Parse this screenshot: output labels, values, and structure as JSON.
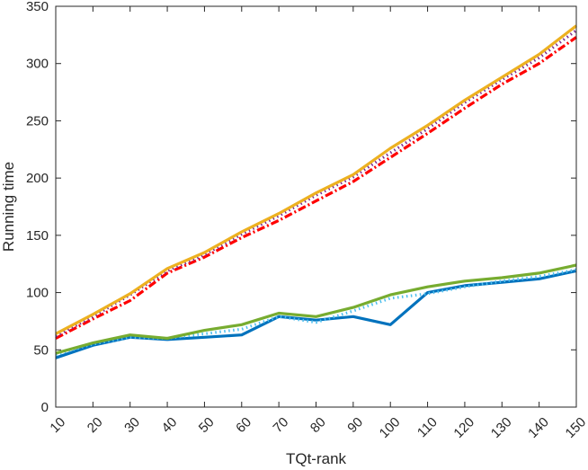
{
  "chart_data": {
    "type": "line",
    "title": "",
    "xlabel": "TQt-rank",
    "ylabel": "Running time",
    "xlim": [
      10,
      150
    ],
    "ylim": [
      0,
      350
    ],
    "x_ticks": [
      10,
      20,
      30,
      40,
      50,
      60,
      70,
      80,
      90,
      100,
      110,
      120,
      130,
      140,
      150
    ],
    "y_ticks": [
      0,
      50,
      100,
      150,
      200,
      250,
      300,
      350
    ],
    "x": [
      10,
      20,
      30,
      40,
      50,
      60,
      70,
      80,
      90,
      100,
      110,
      120,
      130,
      140,
      150
    ],
    "grid": false,
    "legend": "none",
    "series": [
      {
        "color": "#0072BD",
        "style": "solid",
        "values": [
          43,
          54,
          61,
          59,
          61,
          63,
          79,
          76,
          79,
          72,
          100,
          106,
          109,
          112,
          119
        ]
      },
      {
        "color": "#4DBEEE",
        "style": "dotted",
        "values": [
          46,
          55,
          61,
          60,
          64,
          68,
          79,
          74,
          84,
          95,
          99,
          105,
          110,
          114,
          120
        ]
      },
      {
        "color": "#77AC30",
        "style": "solid",
        "values": [
          47,
          56,
          63,
          60,
          67,
          72,
          82,
          79,
          87,
          98,
          105,
          110,
          113,
          117,
          124
        ]
      },
      {
        "color": "#FF0000",
        "style": "dashdot",
        "values": [
          60,
          77,
          93,
          117,
          131,
          148,
          163,
          180,
          197,
          218,
          239,
          261,
          282,
          300,
          323
        ]
      },
      {
        "color": "#7E2F8E",
        "style": "dotted",
        "values": [
          62,
          79,
          98,
          119,
          133,
          151,
          167,
          185,
          201,
          222,
          243,
          266,
          286,
          305,
          329
        ]
      },
      {
        "color": "#EDB120",
        "style": "solid",
        "values": [
          64,
          81,
          99,
          121,
          135,
          153,
          169,
          187,
          203,
          226,
          246,
          268,
          288,
          308,
          333
        ]
      }
    ]
  }
}
